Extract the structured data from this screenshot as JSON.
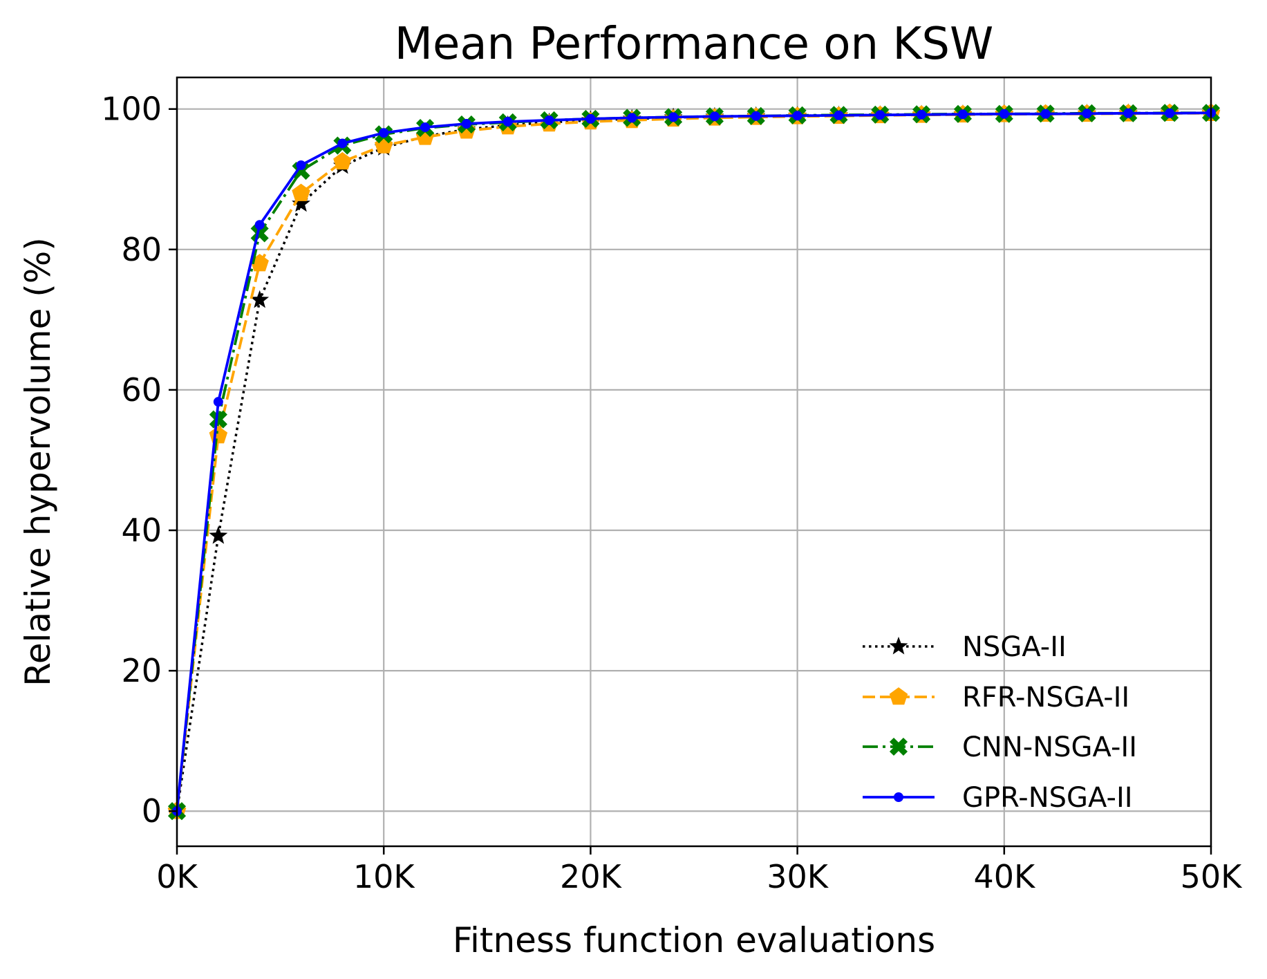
{
  "chart_data": {
    "type": "line",
    "title": "Mean Performance on KSW",
    "xlabel": "Fitness function evaluations",
    "ylabel": "Relative hypervolume (%)",
    "xlim": [
      0,
      50000
    ],
    "ylim": [
      -5,
      104.5
    ],
    "grid": true,
    "legend_position": "lower-right",
    "x_ticks": [
      0,
      10000,
      20000,
      30000,
      40000,
      50000
    ],
    "x_tick_labels": [
      "0K",
      "10K",
      "20K",
      "30K",
      "40K",
      "50K"
    ],
    "y_ticks": [
      0,
      20,
      40,
      60,
      80,
      100
    ],
    "y_tick_labels": [
      "0",
      "20",
      "40",
      "60",
      "80",
      "100"
    ],
    "x": [
      0,
      2000,
      4000,
      6000,
      8000,
      10000,
      12000,
      14000,
      16000,
      18000,
      20000,
      22000,
      24000,
      26000,
      28000,
      30000,
      32000,
      34000,
      36000,
      38000,
      40000,
      42000,
      44000,
      46000,
      48000,
      50000
    ],
    "series": [
      {
        "name": "NSGA-II",
        "color": "#000000",
        "linestyle": "dotted",
        "marker": "star",
        "values": [
          0,
          39.2,
          72.8,
          86.5,
          91.9,
          94.5,
          96.1,
          97.1,
          97.7,
          98.1,
          98.4,
          98.6,
          98.8,
          98.9,
          99.0,
          99.05,
          99.1,
          99.15,
          99.2,
          99.25,
          99.3,
          99.3,
          99.35,
          99.4,
          99.4,
          99.45
        ]
      },
      {
        "name": "RFR-NSGA-II",
        "color": "#ffa500",
        "linestyle": "dashed",
        "marker": "pentagon",
        "values": [
          0,
          53.5,
          78.0,
          88.0,
          92.5,
          94.8,
          96.0,
          96.9,
          97.5,
          97.9,
          98.2,
          98.4,
          98.6,
          98.75,
          98.85,
          98.95,
          99.0,
          99.1,
          99.15,
          99.2,
          99.25,
          99.3,
          99.3,
          99.35,
          99.4,
          99.4
        ]
      },
      {
        "name": "CNN-NSGA-II",
        "color": "#008000",
        "linestyle": "dashdot",
        "marker": "x-filled",
        "values": [
          0,
          55.8,
          82.3,
          91.2,
          94.8,
          96.4,
          97.3,
          97.8,
          98.1,
          98.4,
          98.6,
          98.75,
          98.85,
          98.95,
          99.0,
          99.1,
          99.15,
          99.2,
          99.25,
          99.3,
          99.3,
          99.35,
          99.4,
          99.4,
          99.45,
          99.45
        ]
      },
      {
        "name": "GPR-NSGA-II",
        "color": "#0000ff",
        "linestyle": "solid",
        "marker": "dot",
        "values": [
          0,
          58.3,
          83.5,
          92.0,
          95.1,
          96.6,
          97.4,
          97.9,
          98.2,
          98.4,
          98.6,
          98.75,
          98.85,
          98.95,
          99.0,
          99.05,
          99.1,
          99.15,
          99.2,
          99.25,
          99.3,
          99.3,
          99.35,
          99.4,
          99.4,
          99.45
        ]
      }
    ]
  }
}
